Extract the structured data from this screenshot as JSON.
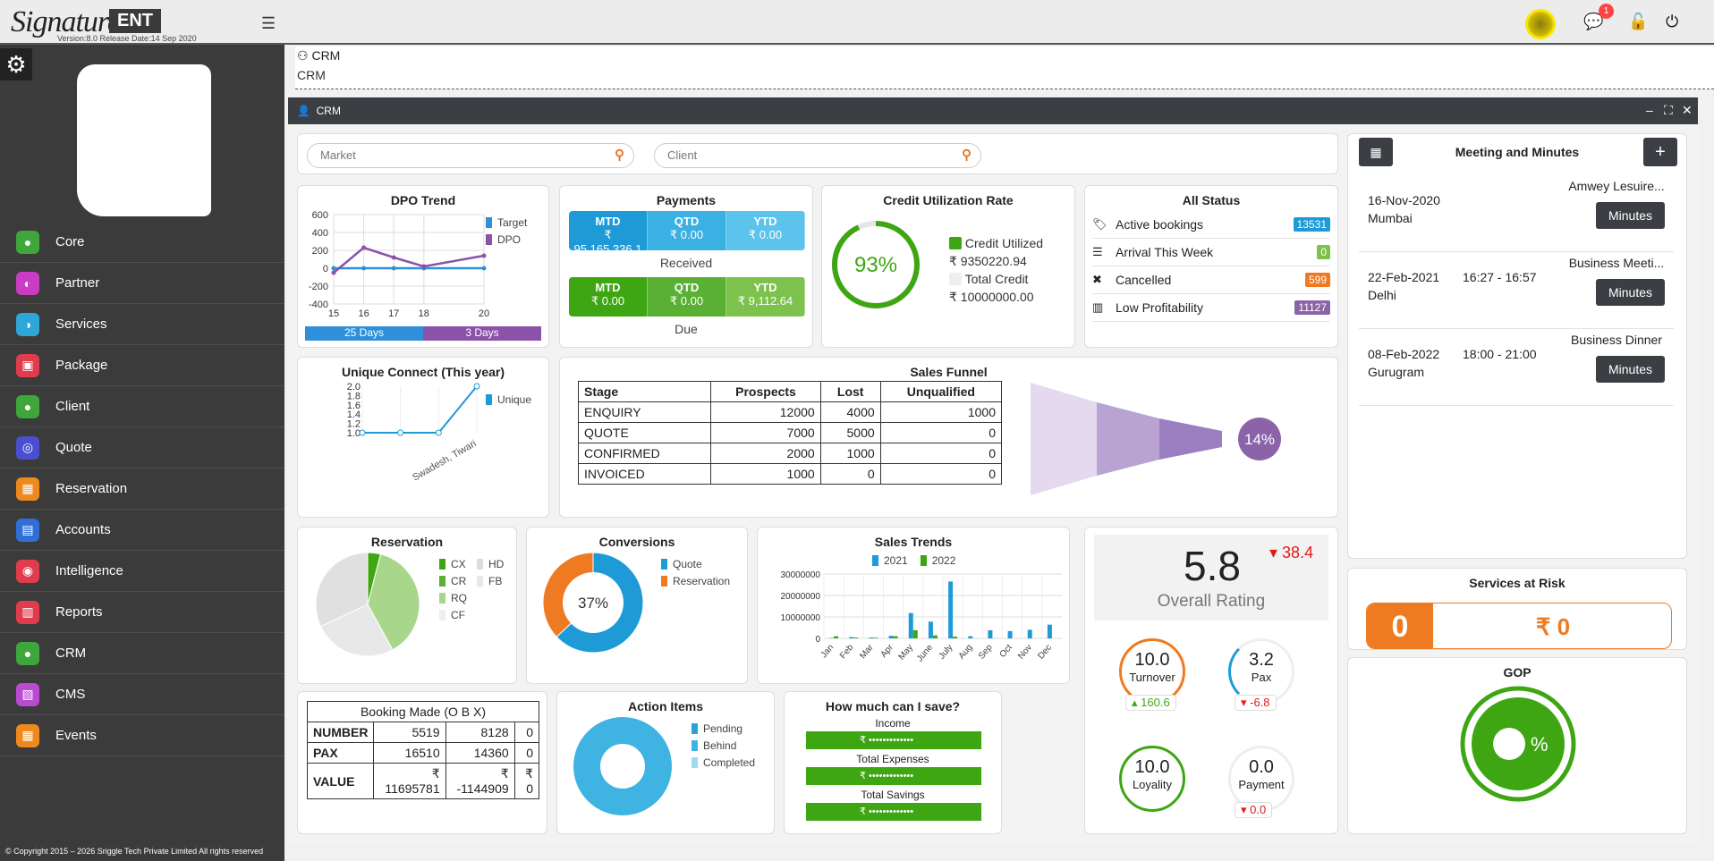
{
  "app": {
    "logo": "Signature",
    "edition": "ENT",
    "version": "Version:8.0    Release Date:14 Sep 2020",
    "notifications": "1",
    "copyright": "© Copyright 2015 – 2026 Sriggle Tech Private Limited All rights reserved"
  },
  "sidebar": {
    "items": [
      {
        "label": "Core",
        "color": "#3ea63b"
      },
      {
        "label": "Partner",
        "color": "#c93cc3"
      },
      {
        "label": "Services",
        "color": "#2ea7d8"
      },
      {
        "label": "Package",
        "color": "#e03c4d"
      },
      {
        "label": "Client",
        "color": "#3ea63b"
      },
      {
        "label": "Quote",
        "color": "#4a4fd0"
      },
      {
        "label": "Reservation",
        "color": "#ee8a1d"
      },
      {
        "label": "Accounts",
        "color": "#2f6fd6"
      },
      {
        "label": "Intelligence",
        "color": "#e03c4d"
      },
      {
        "label": "Reports",
        "color": "#e03c4d"
      },
      {
        "label": "CRM",
        "color": "#3ea63b"
      },
      {
        "label": "CMS",
        "color": "#b84bd0"
      },
      {
        "label": "Events",
        "color": "#ee8a1d"
      }
    ]
  },
  "breadcrumb": {
    "title": "CRM",
    "sub": "CRM"
  },
  "panel": {
    "title": "CRM"
  },
  "search": {
    "market": "Market",
    "client": "Client"
  },
  "dpo": {
    "title": "DPO Trend",
    "legend": [
      "Target",
      "DPO"
    ],
    "days1": "25 Days",
    "days2": "3 Days"
  },
  "payments": {
    "title": "Payments",
    "heads": [
      "MTD",
      "QTD",
      "YTD"
    ],
    "received": [
      "₹ 95,165,336.1",
      "₹ 0.00",
      "₹ 0.00"
    ],
    "received_label": "Received",
    "due": [
      "₹ 0.00",
      "₹ 0.00",
      "₹ 9,112.64"
    ],
    "due_label": "Due"
  },
  "credit": {
    "title": "Credit Utilization Rate",
    "pct": "93%",
    "pct_value": 93,
    "utilized_label": "Credit Utilized",
    "utilized": "₹ 9350220.94",
    "total_label": "Total Credit",
    "total": "₹ 10000000.00"
  },
  "allstatus": {
    "title": "All Status",
    "items": [
      {
        "label": "Active bookings",
        "value": "13531",
        "color": "#1e9bd7",
        "icon": "tag-icon"
      },
      {
        "label": "Arrival This Week",
        "value": "0",
        "color": "#7cc24c",
        "icon": "list-icon"
      },
      {
        "label": "Cancelled",
        "value": "599",
        "color": "#ee7a22",
        "icon": "cross-icon"
      },
      {
        "label": "Low Profitability",
        "value": "11127",
        "color": "#8a63a8",
        "icon": "bar-chart-icon"
      }
    ]
  },
  "unique": {
    "title": "Unique Connect (This year)",
    "legend": "Unique",
    "xlabel": "Swadesh, Tiwari"
  },
  "funnel": {
    "title": "Sales Funnel",
    "headers": [
      "Stage",
      "Prospects",
      "Lost",
      "Unqualified"
    ],
    "rows": [
      [
        "ENQUIRY",
        "12000",
        "4000",
        "1000"
      ],
      [
        "QUOTE",
        "7000",
        "5000",
        "0"
      ],
      [
        "CONFIRMED",
        "2000",
        "1000",
        "0"
      ],
      [
        "INVOICED",
        "1000",
        "0",
        "0"
      ]
    ],
    "pct": "14%"
  },
  "reservation": {
    "title": "Reservation",
    "legend": [
      "CX",
      "HD",
      "CR",
      "FB",
      "RQ",
      "CF"
    ]
  },
  "conversions": {
    "title": "Conversions",
    "pct": "37%",
    "legend": [
      "Quote",
      "Reservation"
    ]
  },
  "salestrends": {
    "title": "Sales Trends",
    "legend": [
      "2021",
      "2022"
    ]
  },
  "rating": {
    "value": "5.8",
    "delta": "38.4",
    "label": "Overall Rating",
    "turnover": {
      "v": "10.0",
      "l": "Turnover",
      "d": "160.6"
    },
    "pax": {
      "v": "3.2",
      "l": "Pax",
      "d": "-6.8"
    },
    "loyality": {
      "v": "10.0",
      "l": "Loyality"
    },
    "payment": {
      "v": "0.0",
      "l": "Payment",
      "d": "0.0"
    }
  },
  "meetings": {
    "title": "Meeting and Minutes",
    "button": "Minutes",
    "items": [
      {
        "date": "16-Nov-2020",
        "place": "Mumbai",
        "time": "",
        "type": "Amwey Lesuire..."
      },
      {
        "date": "22-Feb-2021",
        "place": "Delhi",
        "time": "16:27 - 16:57",
        "type": "Business Meeti..."
      },
      {
        "date": "08-Feb-2022",
        "place": "Gurugram",
        "time": "18:00 - 21:00",
        "type": "Business Dinner"
      }
    ]
  },
  "risk": {
    "title": "Services at Risk",
    "count": "0",
    "amount": "₹ 0"
  },
  "gop": {
    "title": "GOP",
    "pct": "%"
  },
  "booking": {
    "title": "Booking Made (O B X)",
    "rows": [
      [
        "NUMBER",
        "5519",
        "8128",
        "0"
      ],
      [
        "PAX",
        "16510",
        "14360",
        "0"
      ],
      [
        "VALUE",
        "₹ 11695781",
        "₹ -1144909",
        "₹ 0"
      ]
    ]
  },
  "action": {
    "title": "Action Items",
    "legend": [
      "Pending",
      "Behind",
      "Completed"
    ]
  },
  "save": {
    "title": "How much can I save?",
    "income": "Income",
    "expenses": "Total Expenses",
    "savings": "Total Savings",
    "masked": "₹  •••••••••••••"
  },
  "chart_data": [
    {
      "type": "line",
      "title": "DPO Trend",
      "x": [
        15,
        16,
        17,
        18,
        20
      ],
      "series": [
        {
          "name": "Target",
          "values": [
            0,
            0,
            0,
            0,
            0
          ]
        },
        {
          "name": "DPO",
          "values": [
            -50,
            230,
            120,
            20,
            140
          ]
        }
      ],
      "ylim": [
        -400,
        600
      ]
    },
    {
      "type": "line",
      "title": "Unique Connect (This year)",
      "categories": [
        "",
        "",
        "",
        "Swadesh, Tiwari"
      ],
      "series": [
        {
          "name": "Unique",
          "values": [
            1.0,
            1.0,
            1.0,
            2.0
          ]
        }
      ],
      "ylim": [
        1.0,
        2.0
      ]
    },
    {
      "type": "pie",
      "title": "Reservation",
      "categories": [
        "CX",
        "CR",
        "RQ",
        "CF"
      ],
      "values": [
        4,
        38,
        26,
        32
      ]
    },
    {
      "type": "pie",
      "title": "Conversions",
      "categories": [
        "Quote",
        "Reservation"
      ],
      "values": [
        63,
        37
      ]
    },
    {
      "type": "bar",
      "title": "Sales Trends",
      "categories": [
        "Jan",
        "Feb",
        "Mar",
        "Apr",
        "May",
        "June",
        "July",
        "Aug",
        "Sep",
        "Oct",
        "Nov",
        "Dec"
      ],
      "series": [
        {
          "name": "2021",
          "values": [
            200000,
            600000,
            400000,
            1200000,
            11800000,
            7800000,
            26500000,
            1000000,
            3800000,
            3400000,
            4000000,
            6400000
          ]
        },
        {
          "name": "2022",
          "values": [
            1000000,
            400000,
            300000,
            1000000,
            3800000,
            1400000,
            800000,
            0,
            0,
            0,
            0,
            0
          ]
        }
      ],
      "ylim": [
        0,
        30000000
      ]
    },
    {
      "type": "pie",
      "title": "Action Items",
      "categories": [
        "Pending",
        "Behind",
        "Completed"
      ],
      "values": [
        0,
        100,
        0
      ]
    }
  ]
}
